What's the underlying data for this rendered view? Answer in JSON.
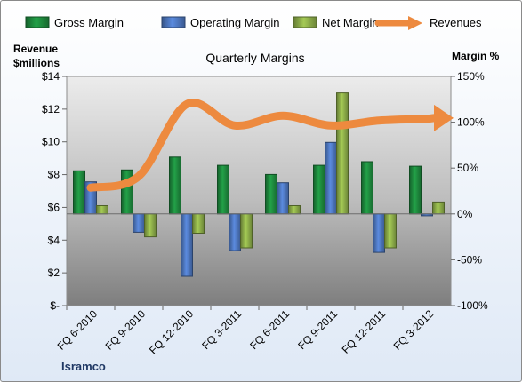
{
  "chart_data": {
    "type": "bar",
    "title": "Quarterly Margins",
    "footer": "Isramco",
    "left_axis_title": [
      "Revenue",
      "$millions"
    ],
    "right_axis_title": "Margin %",
    "categories": [
      "FQ 6-2010",
      "FQ 9-2010",
      "FQ 12-2010",
      "FQ 3-2011",
      "FQ 6-2011",
      "FQ 9-2011",
      "FQ 12-2011",
      "FQ 3-2012"
    ],
    "left_ticks": [
      "$-",
      "$2",
      "$4",
      "$6",
      "$8",
      "$10",
      "$12",
      "$14"
    ],
    "left_ylim": [
      0,
      14
    ],
    "right_ticks": [
      "-100%",
      "-50%",
      "0%",
      "50%",
      "100%",
      "150%"
    ],
    "right_ylim": [
      -100,
      150
    ],
    "series": [
      {
        "name": "Gross Margin",
        "type": "bar",
        "axis": "right",
        "color": "#1e8c3f",
        "values": [
          47,
          48,
          62,
          53,
          43,
          53,
          57,
          52
        ]
      },
      {
        "name": "Operating Margin",
        "type": "bar",
        "axis": "right",
        "color": "#4f79c2",
        "values": [
          35,
          -20,
          -68,
          -40,
          34,
          78,
          -42,
          -2
        ]
      },
      {
        "name": "Net Margin",
        "type": "bar",
        "axis": "right",
        "color": "#8fb04a",
        "values": [
          9,
          -25,
          -21,
          -37,
          9,
          132,
          -37,
          13
        ]
      },
      {
        "name": "Revenues",
        "type": "line",
        "axis": "left",
        "color": "#ed8a3f",
        "values": [
          7.2,
          7.9,
          12.3,
          11.0,
          11.6,
          11.0,
          11.3,
          11.4
        ]
      }
    ],
    "legend_position": "top",
    "grid": false
  }
}
